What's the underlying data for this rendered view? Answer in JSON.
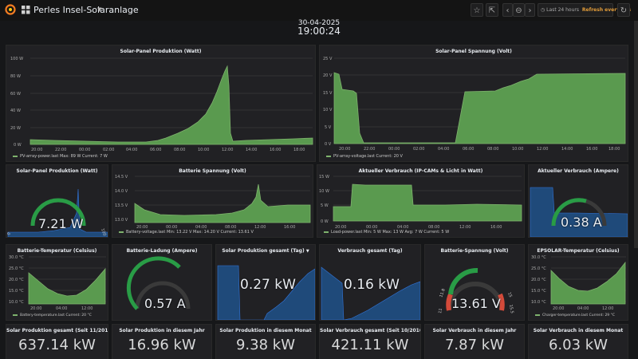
{
  "header": {
    "title": "Perles Insel-Solaranlage",
    "date": "30-04-2025",
    "time": "19:00:24",
    "time_range": "Last 24 hours",
    "refresh": "Refresh every 10s"
  },
  "colors": {
    "series": "#7eb26d",
    "fill": "#5a9a4f",
    "bg": "#161719",
    "panel": "#212124",
    "blue": "#1f60c4",
    "red": "#d44a3a"
  },
  "panels": {
    "pv_power": {
      "title": "Solar-Panel Produktion (Watt)",
      "yticks": [
        "100 W",
        "80 W",
        "60 W",
        "40 W",
        "20 W",
        "0 W"
      ],
      "xticks": [
        "20:00",
        "22:00",
        "00:00",
        "02:00",
        "04:00",
        "06:00",
        "08:00",
        "10:00",
        "12:00",
        "14:00",
        "16:00",
        "18:00"
      ],
      "legend": "PV-array-power.last   Max: 89 W   Current: 7 W"
    },
    "pv_voltage": {
      "title": "Solar-Panel Spannung (Volt)",
      "yticks": [
        "25 V",
        "20 V",
        "15 V",
        "10 V",
        "5 V",
        "0 V"
      ],
      "xticks": [
        "20:00",
        "22:00",
        "00:00",
        "02:00",
        "04:00",
        "06:00",
        "08:00",
        "10:00",
        "12:00",
        "14:00",
        "16:00",
        "18:00"
      ],
      "legend": "PV-array-voltage.last   Current: 20 V"
    },
    "gauge_pv": {
      "title": "Solar-Panel Produktion (Watt)",
      "value": "7.21 W",
      "min": "0",
      "max": "100",
      "level": 0.07
    },
    "bat_voltage": {
      "title": "Batterie Spannung (Volt)",
      "yticks": [
        "14.5 V",
        "14.0 V",
        "13.5 V",
        "13.0 V"
      ],
      "xticks": [
        "20:00",
        "00:00",
        "04:00",
        "08:00",
        "12:00",
        "16:00"
      ],
      "legend": "Battery-voltage.last   Min: 13.22 V   Max: 14.20 V   Current: 13.61 V"
    },
    "load_power": {
      "title": "Aktueller Verbrauch (IP-CAMs & Licht in Watt)",
      "yticks": [
        "15 W",
        "10 W",
        "5 W",
        "0 W"
      ],
      "xticks": [
        "20:00",
        "00:00",
        "04:00",
        "08:00",
        "12:00",
        "16:00"
      ],
      "legend": "Load-power.last   Min: 5 W   Max: 13 W   Avg: 7 W   Current: 5 W"
    },
    "gauge_current": {
      "title": "Aktueller Verbrauch (Ampere)",
      "value": "0.38 A",
      "level": 0.38
    },
    "bat_temp": {
      "title": "Batterie-Temperatur (Celsius)",
      "yticks": [
        "30.0 °C",
        "25.0 °C",
        "20.0 °C",
        "15.0 °C",
        "10.0 °C"
      ],
      "xticks": [
        "20:00",
        "04:00",
        "12:00"
      ],
      "legend": "Battery-temperature.last   Current: 20 °C"
    },
    "gauge_charge": {
      "title": "Batterie-Ladung (Ampere)",
      "value": "0.57 A",
      "level": 0.57
    },
    "solar_day": {
      "title": "Solar Produktion gesamt (Tag)",
      "value": "0.27 kW"
    },
    "usage_day": {
      "title": "Verbrauch gesamt (Tag)",
      "value": "0.16 kW"
    },
    "gauge_bat": {
      "title": "Batterie-Spannung (Volt)",
      "value": "13.61 V",
      "t1": "11",
      "t2": "11.8",
      "t3": "15",
      "t4": "15.5",
      "level": 0.55
    },
    "charger_temp": {
      "title": "EPSOLAR-Temperatur (Celsius)",
      "yticks": [
        "30.0 °C",
        "25.0 °C",
        "20.0 °C",
        "15.0 °C",
        "10.0 °C"
      ],
      "xticks": [
        "20:00",
        "04:00",
        "12:00"
      ],
      "legend": "Charger-temperature.last   Current: 29 °C"
    }
  },
  "stats": [
    {
      "title": "Solar Produktion gesamt (Seit 11/2016)",
      "value": "637.14 kW"
    },
    {
      "title": "Solar Produktion in diesem Jahr",
      "value": "16.96 kW"
    },
    {
      "title": "Solar Produktion in diesem Monat",
      "value": "9.38 kW"
    },
    {
      "title": "Solar Verbrauch gesamt (Seit 10/2016)",
      "value": "421.11 kW"
    },
    {
      "title": "Solar Verbrauch in diesem Jahr",
      "value": "7.87 kW"
    },
    {
      "title": "Solar Verbrauch in diesem Monat",
      "value": "6.03 kW"
    }
  ]
}
